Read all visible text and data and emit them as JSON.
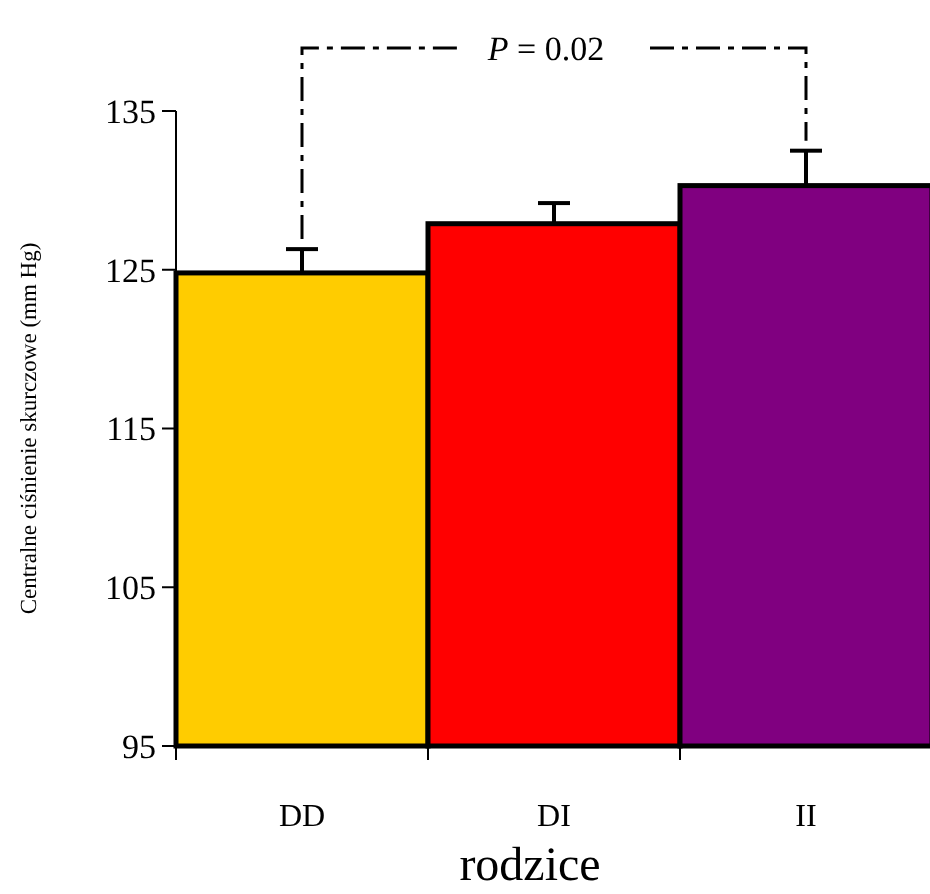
{
  "chart_data": {
    "type": "bar",
    "ylabel": "Centralne ciśnienie skurczowe (mm Hg)",
    "xlabel": "rodzice",
    "categories": [
      "DD",
      "DI",
      "II"
    ],
    "values": [
      124.8,
      127.9,
      130.3
    ],
    "colors": [
      "#ffcc00",
      "#ff0000",
      "#800080"
    ],
    "errors": [
      [
        124.8,
        126.3
      ],
      [
        127.9,
        129.2
      ],
      [
        130.3,
        132.5
      ]
    ],
    "ylim": [
      95,
      135
    ],
    "yticks": [
      95,
      105,
      115,
      125,
      135
    ],
    "annotations": [
      "P = 0.02"
    ],
    "grid": false
  }
}
